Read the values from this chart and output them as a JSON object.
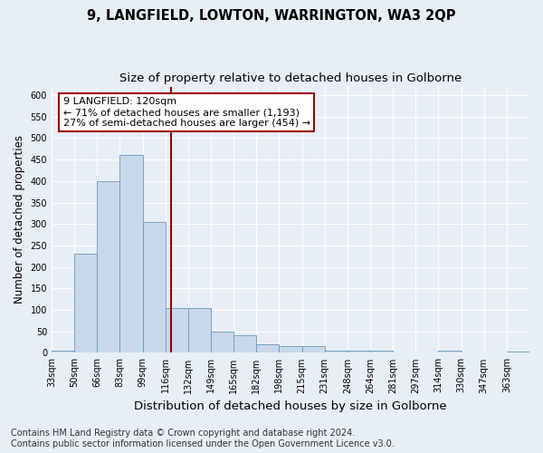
{
  "title": "9, LANGFIELD, LOWTON, WARRINGTON, WA3 2QP",
  "subtitle": "Size of property relative to detached houses in Golborne",
  "xlabel": "Distribution of detached houses by size in Golborne",
  "ylabel": "Number of detached properties",
  "footer_line1": "Contains HM Land Registry data © Crown copyright and database right 2024.",
  "footer_line2": "Contains public sector information licensed under the Open Government Licence v3.0.",
  "bin_labels": [
    "33sqm",
    "50sqm",
    "66sqm",
    "83sqm",
    "99sqm",
    "116sqm",
    "132sqm",
    "149sqm",
    "165sqm",
    "182sqm",
    "198sqm",
    "215sqm",
    "231sqm",
    "248sqm",
    "264sqm",
    "281sqm",
    "297sqm",
    "314sqm",
    "330sqm",
    "347sqm",
    "363sqm"
  ],
  "bar_heights": [
    5,
    230,
    400,
    460,
    305,
    105,
    105,
    50,
    40,
    20,
    15,
    15,
    5,
    5,
    5,
    0,
    0,
    5,
    0,
    0,
    2
  ],
  "bar_color": "#c8d8ea",
  "bar_edge_color": "#6699bb",
  "property_value_bin": 5,
  "vline_color": "#990000",
  "annotation_text": "9 LANGFIELD: 120sqm\n← 71% of detached houses are smaller (1,193)\n27% of semi-detached houses are larger (454) →",
  "annotation_bbox_color": "white",
  "annotation_bbox_edge": "#990000",
  "ylim": [
    0,
    620
  ],
  "yticks": [
    0,
    50,
    100,
    150,
    200,
    250,
    300,
    350,
    400,
    450,
    500,
    550,
    600
  ],
  "background_color": "#e8eef5",
  "plot_background": "#e8eef5",
  "grid_color": "white",
  "title_fontsize": 10.5,
  "subtitle_fontsize": 9.5,
  "annotation_fontsize": 8,
  "tick_fontsize": 7,
  "xlabel_fontsize": 9.5,
  "ylabel_fontsize": 8.5,
  "footer_fontsize": 7
}
